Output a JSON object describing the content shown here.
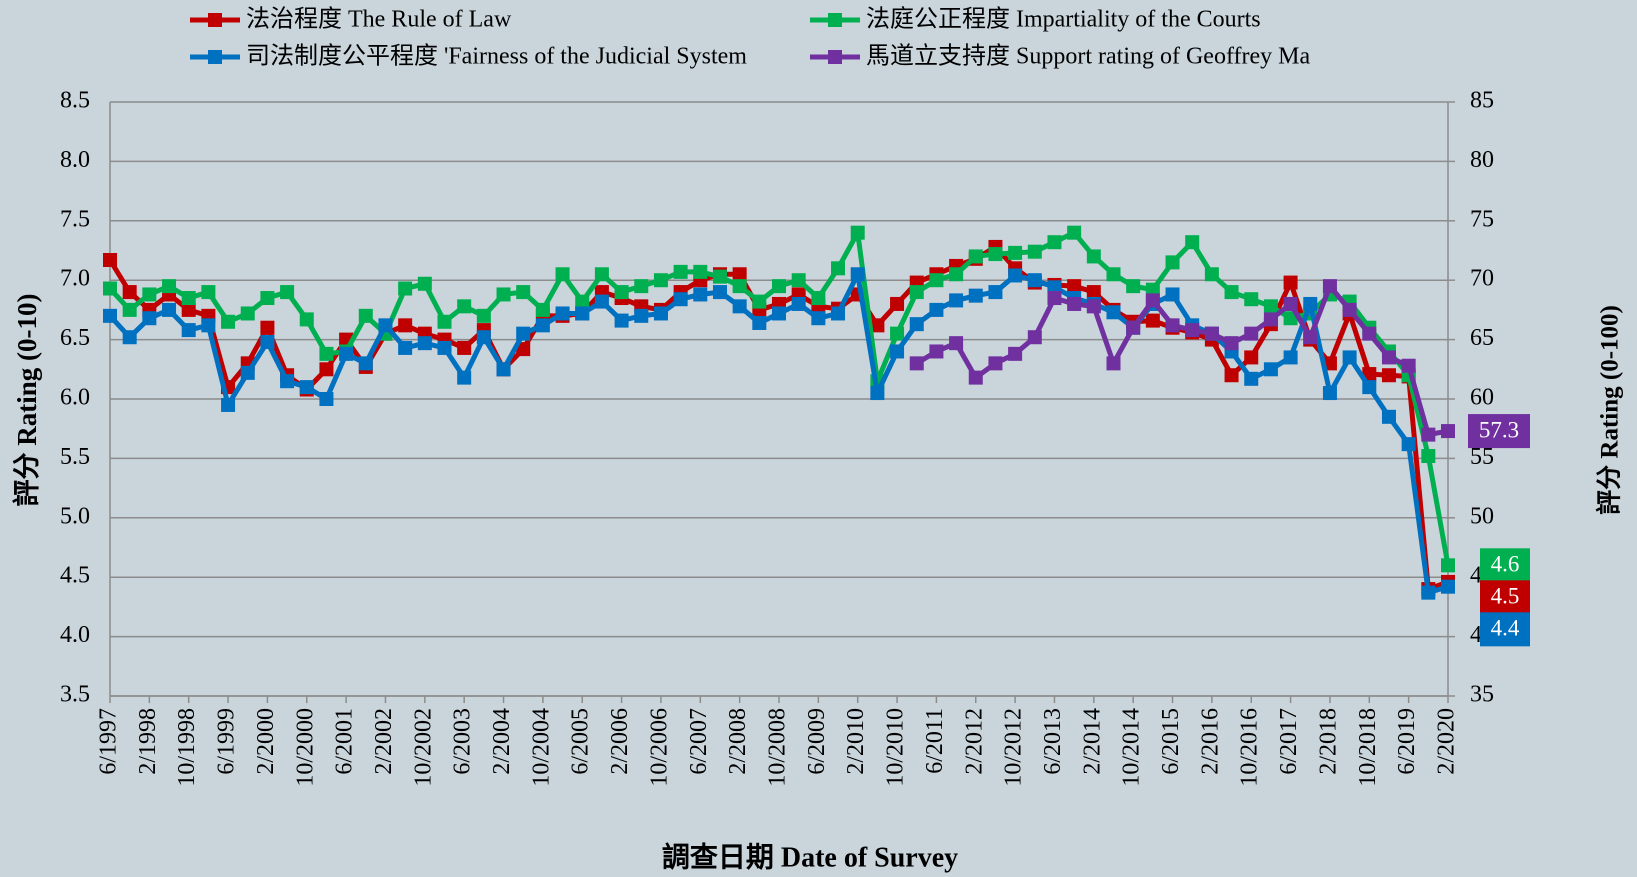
{
  "chart_data": {
    "type": "line",
    "x": [
      "1997-06",
      "1997-10",
      "1998-02",
      "1998-06",
      "1998-10",
      "1999-02",
      "1999-06",
      "1999-10",
      "2000-02",
      "2000-06",
      "2000-10",
      "2001-02",
      "2001-06",
      "2001-10",
      "2002-02",
      "2002-06",
      "2002-10",
      "2003-02",
      "2003-06",
      "2003-10",
      "2004-02",
      "2004-06",
      "2004-10",
      "2005-02",
      "2005-06",
      "2005-10",
      "2006-02",
      "2006-06",
      "2006-10",
      "2007-02",
      "2007-06",
      "2007-10",
      "2008-02",
      "2008-06",
      "2008-10",
      "2009-02",
      "2009-06",
      "2009-10",
      "2010-02",
      "2010-06",
      "2010-10",
      "2011-02",
      "2011-06",
      "2011-10",
      "2012-02",
      "2012-06",
      "2012-10",
      "2013-02",
      "2013-06",
      "2013-10",
      "2014-02",
      "2014-06",
      "2014-10",
      "2015-02",
      "2015-06",
      "2015-10",
      "2016-02",
      "2016-06",
      "2016-10",
      "2017-02",
      "2017-06",
      "2017-10",
      "2018-02",
      "2018-06",
      "2018-10",
      "2019-02",
      "2019-06",
      "2019-10",
      "2020-02"
    ],
    "series": [
      {
        "name": "法治程度 The Rule of Law",
        "color": "#c00000",
        "end_label": "4.5",
        "values": [
          7.17,
          6.9,
          6.75,
          6.88,
          6.75,
          6.7,
          6.1,
          6.3,
          6.6,
          6.2,
          6.08,
          6.25,
          6.5,
          6.27,
          6.55,
          6.62,
          6.55,
          6.5,
          6.43,
          6.58,
          6.25,
          6.42,
          6.7,
          6.7,
          6.72,
          6.9,
          6.85,
          6.78,
          6.75,
          6.9,
          7.0,
          7.05,
          7.05,
          6.75,
          6.8,
          6.88,
          6.78,
          6.76,
          6.88,
          6.62,
          6.8,
          6.98,
          7.05,
          7.12,
          7.18,
          7.28,
          7.1,
          6.98,
          6.96,
          6.95,
          6.9,
          6.75,
          6.65,
          6.66,
          6.6,
          6.56,
          6.5,
          6.2,
          6.35,
          6.63,
          6.98,
          6.5,
          6.3,
          6.72,
          6.21,
          6.2,
          6.19,
          4.4,
          4.46
        ]
      },
      {
        "name": "法庭公正程度 Impartiality of the Courts",
        "color": "#00b050",
        "end_label": "4.6",
        "values": [
          6.93,
          6.75,
          6.88,
          6.95,
          6.85,
          6.9,
          6.65,
          6.72,
          6.85,
          6.9,
          6.67,
          6.38,
          6.4,
          6.7,
          6.55,
          6.93,
          6.97,
          6.65,
          6.78,
          6.7,
          6.88,
          6.9,
          6.75,
          7.05,
          6.82,
          7.05,
          6.9,
          6.95,
          7.0,
          7.07,
          7.07,
          7.03,
          6.95,
          6.82,
          6.95,
          7.0,
          6.85,
          7.1,
          7.4,
          6.15,
          6.55,
          6.9,
          7.0,
          7.05,
          7.2,
          7.22,
          7.23,
          7.24,
          7.32,
          7.4,
          7.2,
          7.05,
          6.95,
          6.92,
          7.15,
          7.32,
          7.05,
          6.9,
          6.84,
          6.78,
          6.68,
          6.72,
          6.88,
          6.82,
          6.6,
          6.4,
          6.2,
          5.52,
          4.6
        ]
      },
      {
        "name": "司法制度公平程度 'Fairness of the Judicial System",
        "color": "#0070c0",
        "end_label": "4.4",
        "values": [
          6.7,
          6.52,
          6.68,
          6.75,
          6.58,
          6.62,
          5.95,
          6.22,
          6.48,
          6.15,
          6.1,
          6.0,
          6.38,
          6.3,
          6.62,
          6.43,
          6.47,
          6.43,
          6.18,
          6.52,
          6.25,
          6.55,
          6.62,
          6.72,
          6.72,
          6.82,
          6.66,
          6.7,
          6.72,
          6.84,
          6.88,
          6.9,
          6.78,
          6.64,
          6.72,
          6.8,
          6.68,
          6.72,
          7.05,
          6.05,
          6.4,
          6.63,
          6.75,
          6.83,
          6.87,
          6.9,
          7.04,
          7.0,
          6.94,
          6.85,
          6.8,
          6.73,
          6.6,
          6.8,
          6.88,
          6.62,
          6.55,
          6.4,
          6.17,
          6.25,
          6.35,
          6.8,
          6.05,
          6.35,
          6.1,
          5.85,
          5.62,
          4.37,
          4.42
        ]
      },
      {
        "name": "馬道立支持度 Support rating of Geoffrey Ma",
        "color": "#7030a0",
        "axis": "y2",
        "end_label": "57.3",
        "values": [
          null,
          null,
          null,
          null,
          null,
          null,
          null,
          null,
          null,
          null,
          null,
          null,
          null,
          null,
          null,
          null,
          null,
          null,
          null,
          null,
          null,
          null,
          null,
          null,
          null,
          null,
          null,
          null,
          null,
          null,
          null,
          null,
          null,
          null,
          null,
          null,
          null,
          null,
          null,
          null,
          null,
          63.0,
          64.0,
          64.7,
          61.8,
          63.0,
          63.8,
          65.2,
          68.5,
          68.0,
          67.8,
          63.0,
          66.0,
          68.3,
          66.2,
          65.8,
          65.5,
          64.7,
          65.5,
          66.7,
          68.0,
          65.2,
          69.5,
          67.5,
          65.5,
          63.5,
          62.8,
          57.0,
          57.3
        ]
      }
    ],
    "xlabel": "調查日期 Date of Survey",
    "ylabel": "評分 Rating (0-10)",
    "y2label": "評分 Rating (0-100)",
    "xlim": [
      "1997-06",
      "2020-02"
    ],
    "xticks": [
      {
        "value": "1997-06",
        "label": "6/1997"
      },
      {
        "value": "1998-02",
        "label": "2/1998"
      },
      {
        "value": "1998-10",
        "label": "10/1998"
      },
      {
        "value": "1999-06",
        "label": "6/1999"
      },
      {
        "value": "2000-02",
        "label": "2/2000"
      },
      {
        "value": "2000-10",
        "label": "10/2000"
      },
      {
        "value": "2001-06",
        "label": "6/2001"
      },
      {
        "value": "2002-02",
        "label": "2/2002"
      },
      {
        "value": "2002-10",
        "label": "10/2002"
      },
      {
        "value": "2003-06",
        "label": "6/2003"
      },
      {
        "value": "2004-02",
        "label": "2/2004"
      },
      {
        "value": "2004-10",
        "label": "10/2004"
      },
      {
        "value": "2005-06",
        "label": "6/2005"
      },
      {
        "value": "2006-02",
        "label": "2/2006"
      },
      {
        "value": "2006-10",
        "label": "10/2006"
      },
      {
        "value": "2007-06",
        "label": "6/2007"
      },
      {
        "value": "2008-02",
        "label": "2/2008"
      },
      {
        "value": "2008-10",
        "label": "10/2008"
      },
      {
        "value": "2009-06",
        "label": "6/2009"
      },
      {
        "value": "2010-02",
        "label": "2/2010"
      },
      {
        "value": "2010-10",
        "label": "10/2010"
      },
      {
        "value": "2011-06",
        "label": "6/2011"
      },
      {
        "value": "2012-02",
        "label": "2/2012"
      },
      {
        "value": "2012-10",
        "label": "10/2012"
      },
      {
        "value": "2013-06",
        "label": "6/2013"
      },
      {
        "value": "2014-02",
        "label": "2/2014"
      },
      {
        "value": "2014-10",
        "label": "10/2014"
      },
      {
        "value": "2015-06",
        "label": "6/2015"
      },
      {
        "value": "2016-02",
        "label": "2/2016"
      },
      {
        "value": "2016-10",
        "label": "10/2016"
      },
      {
        "value": "2017-06",
        "label": "6/2017"
      },
      {
        "value": "2018-02",
        "label": "2/2018"
      },
      {
        "value": "2018-10",
        "label": "10/2018"
      },
      {
        "value": "2019-06",
        "label": "6/2019"
      },
      {
        "value": "2020-02",
        "label": "2/2020"
      }
    ],
    "ylim": [
      3.5,
      8.5
    ],
    "yticks": [
      3.5,
      {
        "value": 4,
        "label": "4.0"
      },
      4.5,
      {
        "value": 5,
        "label": "5.0"
      },
      5.5,
      {
        "value": 6,
        "label": "6.0"
      },
      6.5,
      {
        "value": 7,
        "label": "7.0"
      },
      7.5,
      {
        "value": 8,
        "label": "8.0"
      },
      8.5
    ],
    "y2lim": [
      35,
      85
    ],
    "y2ticks": [
      35,
      40,
      45,
      50,
      55,
      60,
      65,
      70,
      75,
      80,
      85
    ],
    "grid": true
  }
}
